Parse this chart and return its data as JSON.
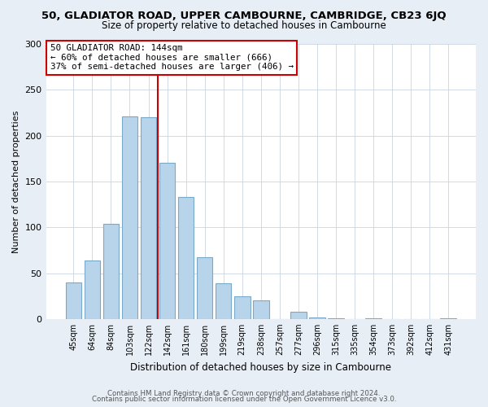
{
  "title": "50, GLADIATOR ROAD, UPPER CAMBOURNE, CAMBRIDGE, CB23 6JQ",
  "subtitle": "Size of property relative to detached houses in Cambourne",
  "xlabel": "Distribution of detached houses by size in Cambourne",
  "ylabel": "Number of detached properties",
  "bar_labels": [
    "45sqm",
    "64sqm",
    "84sqm",
    "103sqm",
    "122sqm",
    "142sqm",
    "161sqm",
    "180sqm",
    "199sqm",
    "219sqm",
    "238sqm",
    "257sqm",
    "277sqm",
    "296sqm",
    "315sqm",
    "335sqm",
    "354sqm",
    "373sqm",
    "392sqm",
    "412sqm",
    "431sqm"
  ],
  "bar_values": [
    40,
    64,
    104,
    221,
    220,
    170,
    133,
    67,
    39,
    25,
    20,
    0,
    8,
    2,
    1,
    0,
    1,
    0,
    0,
    0,
    1
  ],
  "bar_color": "#b8d4ea",
  "bar_edge_color": "#7aaac8",
  "vline_color": "#cc0000",
  "annotation_title": "50 GLADIATOR ROAD: 144sqm",
  "annotation_line1": "← 60% of detached houses are smaller (666)",
  "annotation_line2": "37% of semi-detached houses are larger (406) →",
  "annotation_box_color": "#ffffff",
  "annotation_box_edge": "#cc0000",
  "ylim": [
    0,
    300
  ],
  "yticks": [
    0,
    50,
    100,
    150,
    200,
    250,
    300
  ],
  "footer_line1": "Contains HM Land Registry data © Crown copyright and database right 2024.",
  "footer_line2": "Contains public sector information licensed under the Open Government Licence v3.0.",
  "bg_color": "#e8eef6",
  "plot_bg_color": "#ffffff",
  "title_fontsize": 9.5,
  "subtitle_fontsize": 8.5,
  "ylabel_fontsize": 8,
  "xlabel_fontsize": 8.5
}
